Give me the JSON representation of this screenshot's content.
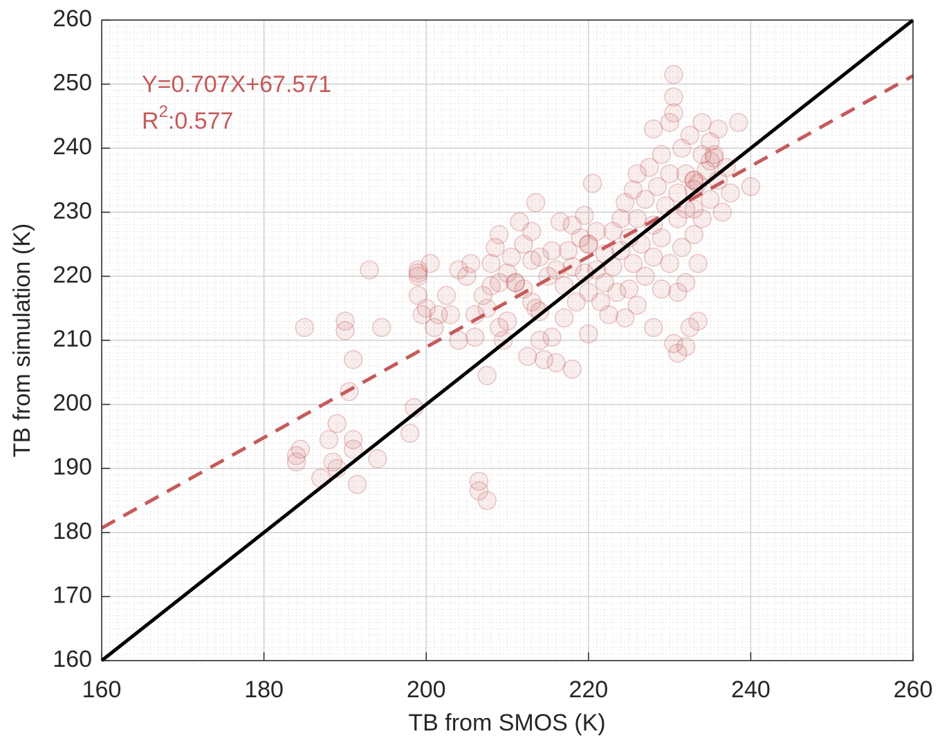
{
  "chart_data": {
    "type": "scatter",
    "xlabel": "TB from SMOS (K)",
    "ylabel": "TB from simulation (K)",
    "xlim": [
      160,
      260
    ],
    "ylim": [
      160,
      260
    ],
    "xticks": [
      160,
      180,
      200,
      220,
      240,
      260
    ],
    "yticks": [
      160,
      170,
      180,
      190,
      200,
      210,
      220,
      230,
      240,
      250,
      260
    ],
    "grid": true,
    "minor_grid_step": 1,
    "annotations": [
      {
        "text": "Y=0.707X+67.571"
      },
      {
        "text": "R",
        "superscript": "2",
        "suffix": ":0.577"
      }
    ],
    "annotation_color": "#c55a5a",
    "series": [
      {
        "type": "scatter",
        "color": "#c0504d",
        "x": [
          185,
          184,
          184,
          184.5,
          187,
          188,
          188.5,
          189,
          189,
          190,
          190,
          190.5,
          191,
          191,
          191,
          191.5,
          193,
          194,
          194.5,
          198,
          198.5,
          199,
          199,
          199,
          199.5,
          200,
          200.5,
          201,
          201.5,
          202.5,
          203,
          204,
          204,
          205,
          205.5,
          206,
          206,
          206.5,
          206.5,
          207,
          207.5,
          207.5,
          207.5,
          208,
          208,
          208.5,
          209,
          209,
          209,
          209.5,
          210,
          210,
          210.5,
          211,
          211.5,
          212,
          212,
          212.5,
          213,
          213,
          213,
          213.5,
          213.5,
          214,
          214,
          214,
          214.5,
          215,
          215.5,
          215.5,
          216,
          216,
          216.5,
          217,
          217,
          217.5,
          218,
          218,
          218,
          218.5,
          219,
          219.5,
          219.5,
          220,
          220,
          220,
          220.5,
          221,
          221,
          221.5,
          222,
          222,
          222.5,
          223,
          223,
          223.5,
          224,
          224,
          224.5,
          224.5,
          225,
          225,
          225.5,
          225.5,
          226,
          226,
          226,
          226.5,
          227,
          227,
          227.5,
          228,
          228,
          228,
          228.5,
          229,
          229,
          229,
          229.5,
          230,
          230,
          230,
          230.5,
          230.5,
          230.5,
          231,
          231,
          231,
          231.5,
          231.5,
          232,
          232,
          232,
          232,
          232.5,
          232.5,
          233,
          233,
          233,
          233,
          233.5,
          233.5,
          234,
          234,
          234,
          234.5,
          235,
          235,
          235,
          235.5,
          236,
          236,
          236.5,
          237,
          237.5,
          238.5,
          240,
          228,
          230.5,
          231,
          233,
          233.5,
          235.5,
          211,
          199,
          220
        ],
        "values": [
          212,
          192,
          191,
          193,
          188.5,
          194.5,
          191,
          197,
          190,
          213,
          211.5,
          202,
          207,
          194.5,
          193,
          187.5,
          221,
          191.5,
          212,
          195.5,
          199.5,
          221,
          220,
          217,
          214,
          215,
          222,
          212,
          214,
          217,
          214,
          221,
          210,
          220,
          222,
          214,
          210.5,
          188,
          186.5,
          217,
          215,
          204.5,
          185,
          222,
          218.5,
          224.5,
          219,
          212,
          226.5,
          210,
          213,
          220.5,
          223,
          219,
          228.5,
          225,
          218,
          207.5,
          216,
          222.5,
          227,
          231.5,
          215,
          210,
          223,
          214.5,
          207,
          220,
          210.5,
          224,
          206.5,
          221,
          228.5,
          218.5,
          213.5,
          224,
          205.5,
          221.5,
          228,
          216,
          226,
          220.5,
          229.5,
          225,
          217.5,
          211,
          234.5,
          221,
          227,
          216,
          219,
          223.5,
          214,
          227,
          221.5,
          217.5,
          229,
          224,
          213.5,
          231.5,
          226,
          218,
          233.5,
          222,
          236,
          229,
          215.5,
          225,
          232,
          220,
          237,
          228,
          223,
          243,
          234,
          239,
          226,
          218,
          231,
          236,
          244,
          222,
          251.5,
          248,
          245.5,
          229,
          233,
          217.5,
          224.5,
          240,
          219,
          236,
          209,
          230.5,
          212,
          242,
          226.5,
          235,
          230.5,
          233.5,
          213,
          222,
          239,
          244,
          229,
          236.5,
          232,
          241,
          238,
          239,
          235,
          243,
          230,
          237,
          233,
          244,
          234,
          212,
          209.5,
          208,
          235,
          234.5,
          238.5,
          219,
          220.5,
          225
        ]
      },
      {
        "type": "line",
        "color": "#c55a5a",
        "dashed": true,
        "x": [
          160,
          260
        ],
        "values": [
          180.7,
          251.3
        ]
      },
      {
        "type": "line",
        "color": "#000000",
        "dashed": false,
        "x": [
          160,
          260
        ],
        "values": [
          160,
          260
        ]
      }
    ]
  }
}
